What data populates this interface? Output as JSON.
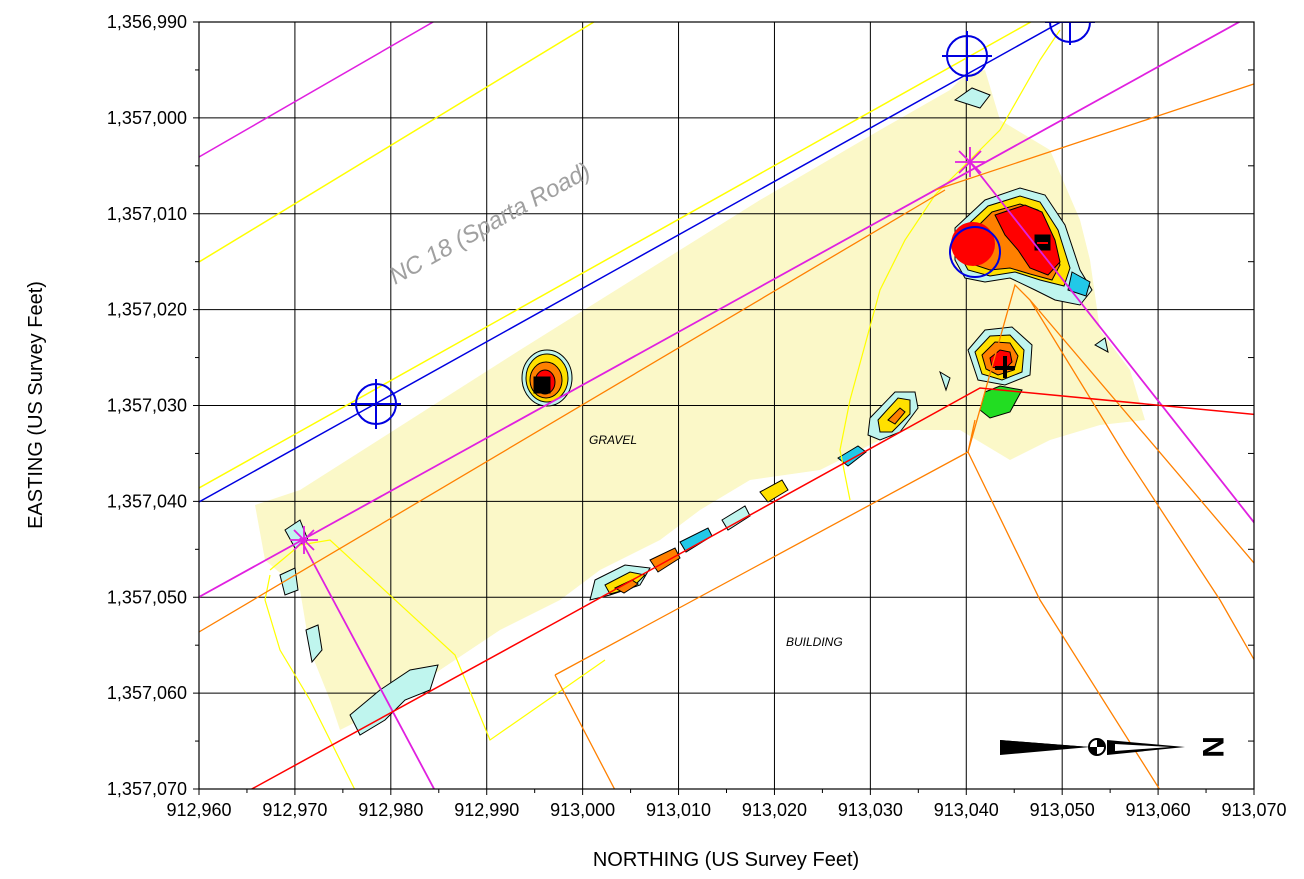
{
  "map": {
    "x_axis_title": "NORTHING (US Survey Feet)",
    "y_axis_title": "EASTING (US Survey Feet)",
    "x_ticks": [
      "912,960",
      "912,970",
      "912,980",
      "912,990",
      "913,000",
      "913,010",
      "913,020",
      "913,030",
      "913,040",
      "913,050",
      "913,060",
      "913,070"
    ],
    "y_ticks": [
      "1,356,990",
      "1,357,000",
      "1,357,010",
      "1,357,020",
      "1,357,030",
      "1,357,040",
      "1,357,050",
      "1,357,060",
      "1,357,070"
    ],
    "x_range": [
      912960,
      913070
    ],
    "y_range": [
      1356990,
      1357070
    ],
    "grid": true,
    "road_label": "NC 18 (Sparta Road)",
    "gravel_label": "GRAVEL",
    "building_label": "BUILDING",
    "north_letter": "N",
    "colors": {
      "survey_fill": "#fbf8c8",
      "contour_low": "#bff5ee",
      "contour_cyan": "#22c8e8",
      "contour_yellow": "#ffe000",
      "contour_orange": "#ff8000",
      "contour_red": "#ff0000",
      "line_magenta": "#e020e0",
      "line_blue": "#0000e0",
      "line_yellow": "#ffff00",
      "line_orange": "#ff8000",
      "line_red": "#ff0000"
    }
  }
}
